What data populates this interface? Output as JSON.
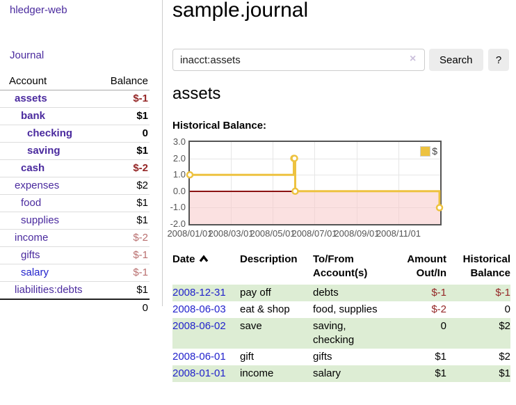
{
  "app": {
    "brand": "hledger-web"
  },
  "nav": {
    "journal": "Journal"
  },
  "sidebar": {
    "header": {
      "account": "Account",
      "balance": "Balance"
    },
    "accounts": [
      {
        "name": "assets",
        "depth": 1,
        "highlighted": true,
        "balance": "$-1"
      },
      {
        "name": "bank",
        "depth": 2,
        "highlighted": true,
        "balance": "$1"
      },
      {
        "name": "checking",
        "depth": 3,
        "highlighted": true,
        "balance": "0"
      },
      {
        "name": "saving",
        "depth": 3,
        "highlighted": true,
        "balance": "$1"
      },
      {
        "name": "cash",
        "depth": 2,
        "highlighted": true,
        "balance": "$-2"
      },
      {
        "name": "expenses",
        "depth": 1,
        "highlighted": false,
        "balance": "$2"
      },
      {
        "name": "food",
        "depth": 2,
        "highlighted": false,
        "balance": "$1"
      },
      {
        "name": "supplies",
        "depth": 2,
        "highlighted": false,
        "balance": "$1"
      },
      {
        "name": "income",
        "depth": 1,
        "highlighted": false,
        "balance": "$-2"
      },
      {
        "name": "gifts",
        "depth": 2,
        "highlighted": false,
        "balance": "$-1"
      },
      {
        "name": "salary",
        "depth": 2,
        "highlighted": false,
        "balance": "$-1",
        "link_blue": true
      },
      {
        "name": "liabilities:debts",
        "depth": 1,
        "highlighted": false,
        "balance": "$1"
      }
    ],
    "total": "0"
  },
  "header": {
    "title": "sample.journal"
  },
  "search": {
    "value": "inacct:assets",
    "clear_icon": "×",
    "search_label": "Search",
    "help_label": "?"
  },
  "main": {
    "account_title": "assets",
    "chart_label": "Historical Balance:"
  },
  "chart_data": {
    "type": "line",
    "step": true,
    "title": "Historical Balance",
    "series": [
      {
        "name": "$",
        "color": "#edc240",
        "points": [
          [
            "2008-01-01",
            1
          ],
          [
            "2008-06-01",
            2
          ],
          [
            "2008-06-02",
            2
          ],
          [
            "2008-06-03",
            0
          ],
          [
            "2008-12-31",
            -1
          ]
        ]
      }
    ],
    "xlim": [
      "2008-01-01",
      "2009-01-01"
    ],
    "ylim": [
      -2,
      3
    ],
    "y_ticks": [
      3,
      2,
      1,
      0,
      -1,
      -2
    ],
    "x_ticks": [
      {
        "date": "2008-01-01",
        "label": "2008/01/01"
      },
      {
        "date": "2008-03-01",
        "label": "2008/03/01"
      },
      {
        "date": "2008-05-01",
        "label": "2008/05/01"
      },
      {
        "date": "2008-07-01",
        "label": "2008/07/01"
      },
      {
        "date": "2008-09-01",
        "label": "2008/09/01"
      },
      {
        "date": "2008-11-01",
        "label": "2008/11/01"
      }
    ],
    "legend": {
      "label": "$",
      "position": "top-right"
    },
    "grid": true,
    "negative_region_color": "#f8d9d9",
    "zero_line_color": "#8b1212"
  },
  "register": {
    "headers": [
      {
        "label": "Date",
        "sorted": "asc"
      },
      {
        "label": "Description"
      },
      {
        "label": "To/From\nAccount(s)"
      },
      {
        "label": "Amount\nOut/In",
        "align": "right"
      },
      {
        "label": "Historical\nBalance",
        "align": "right"
      }
    ],
    "rows": [
      {
        "date": "2008-12-31",
        "description": "pay off",
        "accounts": "debts",
        "amount": "$-1",
        "balance": "$-1"
      },
      {
        "date": "2008-06-03",
        "description": "eat & shop",
        "accounts": "food, supplies",
        "amount": "$-2",
        "balance": "0"
      },
      {
        "date": "2008-06-02",
        "description": "save",
        "accounts": "saving,\nchecking",
        "amount": "0",
        "balance": "$2"
      },
      {
        "date": "2008-06-01",
        "description": "gift",
        "accounts": "gifts",
        "amount": "$1",
        "balance": "$2"
      },
      {
        "date": "2008-01-01",
        "description": "income",
        "accounts": "salary",
        "amount": "$1",
        "balance": "$1"
      }
    ]
  },
  "colors": {
    "link_purple": "#4a2a9e",
    "link_blue": "#2222cc",
    "negative": "#942626",
    "negative_dim": "#b96f6f",
    "row_green": "#ddedd4",
    "gold": "#edc240",
    "chart_border": "#545454"
  }
}
